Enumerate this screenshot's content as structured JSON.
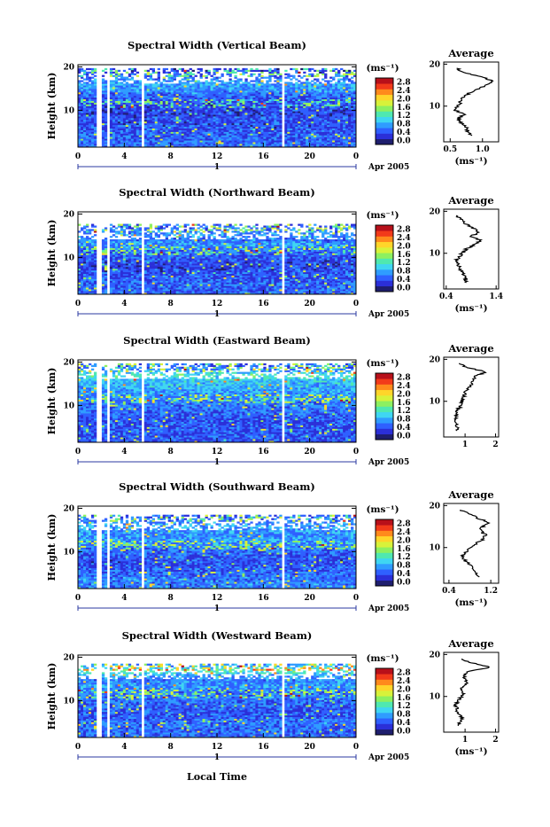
{
  "figure": {
    "x_axis_title": "Local Time",
    "date_label": "Apr 2005",
    "day_marker": "1",
    "height_axis_label": "Height (km)",
    "avg_label": "Average"
  },
  "colorbar": {
    "unit": "(ms⁻¹)",
    "ticks": [
      "0.0",
      "0.4",
      "0.8",
      "1.2",
      "1.6",
      "2.0",
      "2.4",
      "2.8"
    ],
    "colors": [
      "#1e1e6e",
      "#2b2fd8",
      "#2f60ff",
      "#2f9cff",
      "#3fd6f2",
      "#4fe8b0",
      "#8df060",
      "#d8f23a",
      "#ffd52a",
      "#ff8a1c",
      "#f23a1a",
      "#b8101a"
    ]
  },
  "chart_data": [
    {
      "type": "heatmap",
      "title": "Spectral Width (Vertical Beam)",
      "xlabel": "",
      "ylabel": "Height (km)",
      "xlim": [
        0,
        24
      ],
      "ylim": [
        1.5,
        20.5
      ],
      "x_ticks": [
        "0",
        "4",
        "8",
        "12",
        "16",
        "20",
        "0"
      ],
      "y_ticks": [
        "10",
        "20"
      ],
      "colorbar_range": [
        0.0,
        3.0
      ],
      "top_of_data_km": 19.0,
      "data_gaps_hours": [
        [
          1.6,
          1.95
        ],
        [
          2.5,
          2.75
        ],
        [
          5.5,
          5.65
        ],
        [
          17.5,
          17.75
        ]
      ],
      "average_profile": {
        "title": "Average",
        "xlabel": "(ms⁻¹)",
        "xlim": [
          0.4,
          1.25
        ],
        "x_ticks": [
          "0.5",
          "1.0"
        ],
        "y_ticks": [
          "10",
          "20"
        ],
        "height_km": [
          3,
          4,
          5,
          6,
          7,
          8,
          9,
          10,
          11,
          12,
          13,
          14,
          15,
          16,
          17,
          18,
          19
        ],
        "width_ms": [
          0.82,
          0.78,
          0.74,
          0.68,
          0.62,
          0.72,
          0.58,
          0.62,
          0.66,
          0.7,
          0.78,
          0.92,
          1.05,
          1.15,
          0.98,
          0.72,
          0.6
        ]
      }
    },
    {
      "type": "heatmap",
      "title": "Spectral Width (Northward Beam)",
      "xlabel": "",
      "ylabel": "Height (km)",
      "xlim": [
        0,
        24
      ],
      "ylim": [
        1.5,
        20.5
      ],
      "x_ticks": [
        "0",
        "4",
        "8",
        "12",
        "16",
        "20",
        "0"
      ],
      "y_ticks": [
        "10",
        "20"
      ],
      "colorbar_range": [
        0.0,
        3.0
      ],
      "top_of_data_km": 17.0,
      "data_gaps_hours": [
        [
          1.6,
          1.95
        ],
        [
          2.5,
          2.75
        ],
        [
          5.5,
          5.65
        ],
        [
          17.5,
          17.75
        ]
      ],
      "average_profile": {
        "title": "Average",
        "xlabel": "(ms⁻¹)",
        "xlim": [
          0.35,
          1.45
        ],
        "x_ticks": [
          "0.4",
          "1.4"
        ],
        "y_ticks": [
          "10",
          "20"
        ],
        "height_km": [
          3,
          4,
          5,
          6,
          7,
          8,
          9,
          10,
          11,
          12,
          13,
          14,
          15,
          16,
          17,
          18,
          19
        ],
        "width_ms": [
          0.78,
          0.8,
          0.74,
          0.7,
          0.66,
          0.6,
          0.64,
          0.72,
          0.8,
          0.95,
          1.1,
          0.9,
          1.05,
          0.95,
          0.8,
          0.7,
          0.6
        ]
      }
    },
    {
      "type": "heatmap",
      "title": "Spectral Width (Eastward Beam)",
      "xlabel": "",
      "ylabel": "Height (km)",
      "xlim": [
        0,
        24
      ],
      "ylim": [
        1.5,
        20.5
      ],
      "x_ticks": [
        "0",
        "4",
        "8",
        "12",
        "16",
        "20",
        "0"
      ],
      "y_ticks": [
        "10",
        "20"
      ],
      "colorbar_range": [
        0.0,
        3.0
      ],
      "top_of_data_km": 19.0,
      "data_gaps_hours": [
        [
          1.6,
          1.95
        ],
        [
          2.5,
          2.75
        ],
        [
          5.5,
          5.65
        ],
        [
          17.5,
          17.75
        ]
      ],
      "average_profile": {
        "title": "Average",
        "xlabel": "",
        "xlim": [
          0.3,
          2.1
        ],
        "x_ticks": [
          "1",
          "2"
        ],
        "y_ticks": [
          "10",
          "20"
        ],
        "height_km": [
          3,
          4,
          5,
          6,
          7,
          8,
          9,
          10,
          11,
          12,
          13,
          14,
          15,
          16,
          17,
          18,
          19
        ],
        "width_ms": [
          0.7,
          0.75,
          0.72,
          0.68,
          0.7,
          0.78,
          0.85,
          0.9,
          0.95,
          1.0,
          1.1,
          1.2,
          1.25,
          1.35,
          1.7,
          1.1,
          0.8
        ]
      }
    },
    {
      "type": "heatmap",
      "title": "Spectral Width (Southward Beam)",
      "xlabel": "",
      "ylabel": "Height (km)",
      "xlim": [
        0,
        24
      ],
      "ylim": [
        1.5,
        20.5
      ],
      "x_ticks": [
        "0",
        "4",
        "8",
        "12",
        "16",
        "20",
        "0"
      ],
      "y_ticks": [
        "10",
        "20"
      ],
      "colorbar_range": [
        0.0,
        3.0
      ],
      "top_of_data_km": 18.0,
      "data_gaps_hours": [
        [
          1.6,
          1.95
        ],
        [
          2.5,
          2.75
        ],
        [
          5.5,
          5.65
        ],
        [
          17.5,
          17.75
        ]
      ],
      "average_profile": {
        "title": "Average",
        "xlabel": "(ms⁻¹)",
        "xlim": [
          0.3,
          1.35
        ],
        "x_ticks": [
          "0.4",
          "1.2"
        ],
        "y_ticks": [
          "10",
          "20"
        ],
        "height_km": [
          3,
          4,
          5,
          6,
          7,
          8,
          9,
          10,
          11,
          12,
          13,
          14,
          15,
          16,
          17,
          18,
          19
        ],
        "width_ms": [
          0.95,
          0.92,
          0.85,
          0.78,
          0.7,
          0.66,
          0.72,
          0.8,
          0.92,
          1.05,
          1.1,
          1.0,
          1.05,
          1.15,
          0.95,
          0.8,
          0.62
        ]
      }
    },
    {
      "type": "heatmap",
      "title": "Spectral Width (Westward Beam)",
      "xlabel": "Local Time",
      "ylabel": "Height (km)",
      "xlim": [
        0,
        24
      ],
      "ylim": [
        1.5,
        20.5
      ],
      "x_ticks": [
        "0",
        "4",
        "8",
        "12",
        "16",
        "20",
        "0"
      ],
      "y_ticks": [
        "10",
        "20"
      ],
      "colorbar_range": [
        0.0,
        3.0
      ],
      "top_of_data_km": 18.0,
      "data_gaps_hours": [
        [
          1.6,
          1.95
        ],
        [
          2.5,
          2.75
        ],
        [
          5.5,
          5.65
        ],
        [
          17.5,
          17.75
        ]
      ],
      "average_profile": {
        "title": "Average",
        "xlabel": "(ms⁻¹)",
        "xlim": [
          0.3,
          2.1
        ],
        "x_ticks": [
          "1",
          "2"
        ],
        "y_ticks": [
          "10",
          "20"
        ],
        "height_km": [
          3,
          4,
          5,
          6,
          7,
          8,
          9,
          10,
          11,
          12,
          13,
          14,
          15,
          16,
          17,
          18,
          19
        ],
        "width_ms": [
          0.8,
          0.85,
          0.9,
          0.75,
          0.72,
          0.7,
          0.78,
          0.88,
          0.95,
          0.9,
          1.05,
          1.0,
          0.95,
          1.15,
          1.85,
          1.2,
          0.9
        ]
      }
    }
  ]
}
